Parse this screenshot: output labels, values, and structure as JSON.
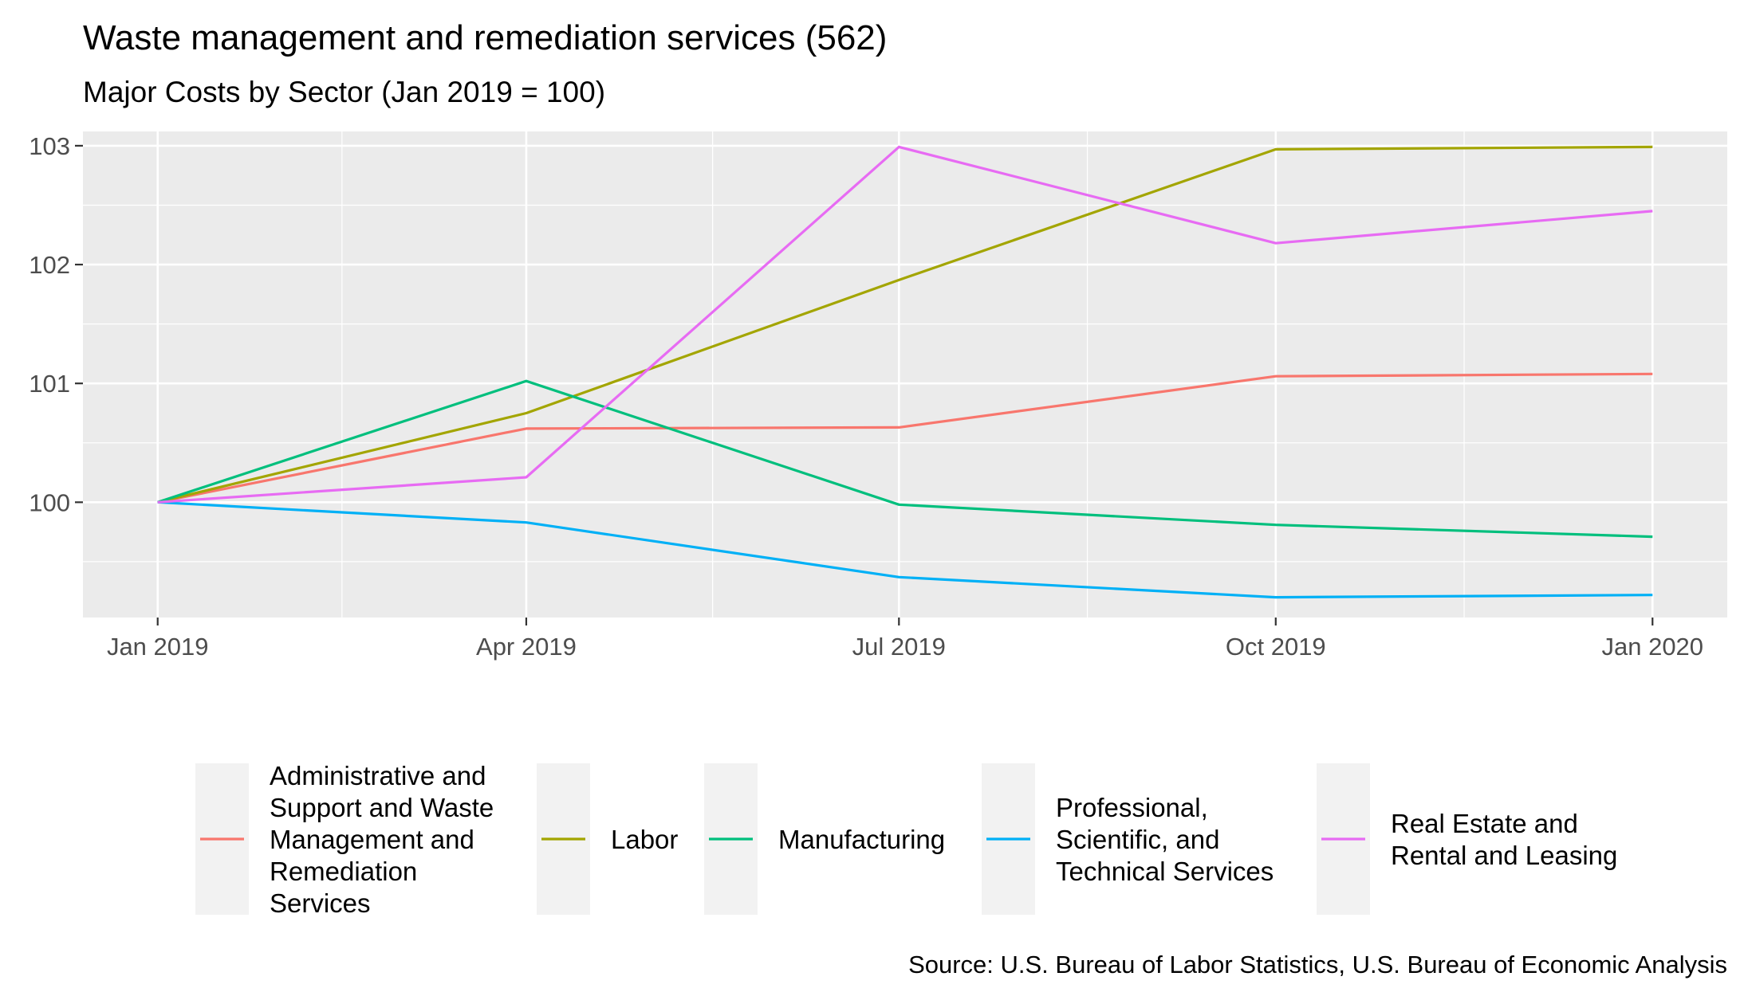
{
  "chart_data": {
    "type": "line",
    "title": "Waste management and remediation services (562)",
    "subtitle": "Major Costs by Sector (Jan 2019 = 100)",
    "caption": "Source: U.S. Bureau of Labor Statistics, U.S. Bureau of Economic Analysis",
    "x": [
      "2019-01-01",
      "2019-04-01",
      "2019-07-01",
      "2019-10-01",
      "2020-01-01"
    ],
    "x_tick_labels": [
      "Jan 2019",
      "Apr 2019",
      "Jul 2019",
      "Oct 2019",
      "Jan 2020"
    ],
    "y_ticks": [
      100,
      101,
      102,
      103
    ],
    "ylim": [
      99.03,
      103.12
    ],
    "grid": true,
    "legend_position": "bottom",
    "series": [
      {
        "name": "Administrative and Support and Waste Management and Remediation Services",
        "color": "#F8766D",
        "values": [
          100.0,
          100.62,
          100.63,
          101.06,
          101.08
        ]
      },
      {
        "name": "Labor",
        "color": "#A3A500",
        "values": [
          100.0,
          100.75,
          101.87,
          102.97,
          102.99
        ]
      },
      {
        "name": "Manufacturing",
        "color": "#00BF7D",
        "values": [
          100.0,
          101.02,
          99.98,
          99.81,
          99.71
        ]
      },
      {
        "name": "Professional, Scientific, and Technical Services",
        "color": "#00B0F6",
        "values": [
          100.0,
          99.83,
          99.37,
          99.2,
          99.22
        ]
      },
      {
        "name": "Real Estate and Rental and Leasing",
        "color": "#E76BF3",
        "values": [
          100.0,
          100.21,
          102.99,
          102.18,
          102.45
        ]
      }
    ]
  }
}
